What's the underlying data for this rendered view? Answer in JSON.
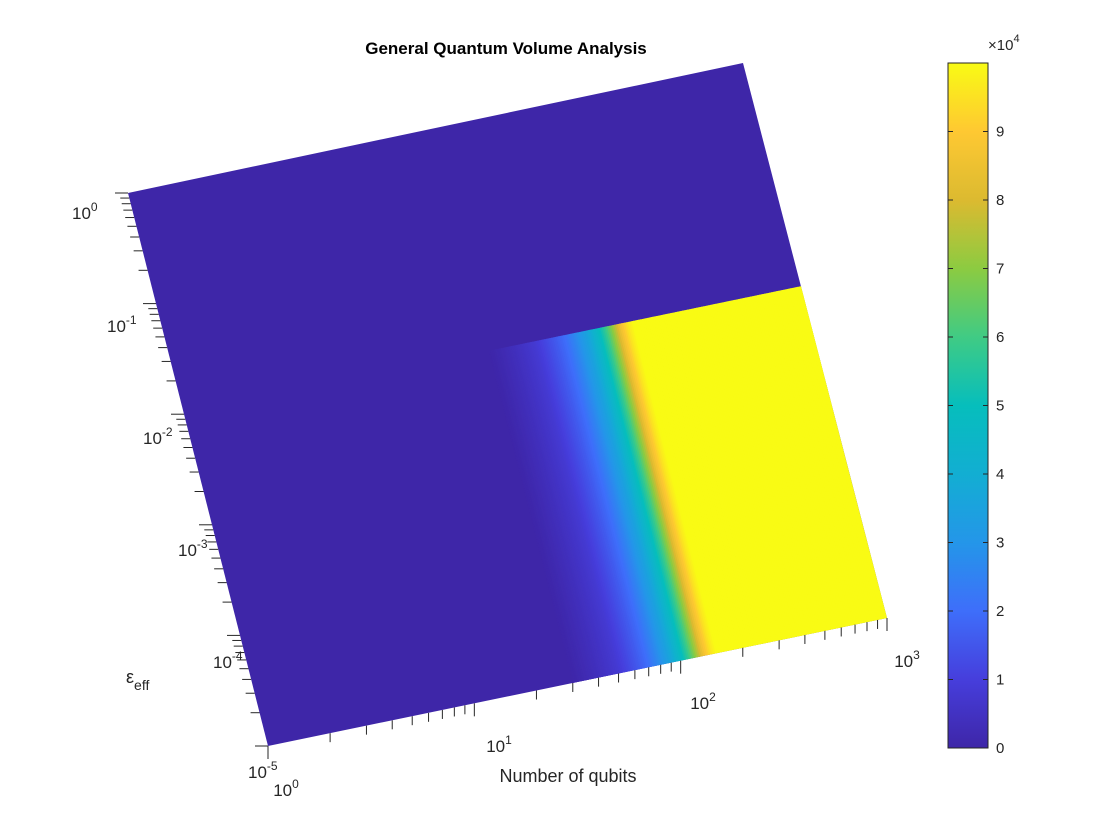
{
  "chart_data": {
    "type": "heatmap",
    "title": "General Quantum Volume Analysis",
    "xlabel": "Number of qubits",
    "ylabel": "ε_eff",
    "ylabel_base": "ε",
    "ylabel_sub": "eff",
    "x_scale": "log",
    "y_scale": "log",
    "xlim": [
      1,
      1000
    ],
    "ylim": [
      1e-05,
      1
    ],
    "x_ticks": [
      {
        "base": "10",
        "exp": "0",
        "value": 1
      },
      {
        "base": "10",
        "exp": "1",
        "value": 10
      },
      {
        "base": "10",
        "exp": "2",
        "value": 100
      },
      {
        "base": "10",
        "exp": "3",
        "value": 1000
      }
    ],
    "y_ticks": [
      {
        "base": "10",
        "exp": "-5",
        "value": 1e-05
      },
      {
        "base": "10",
        "exp": "-4",
        "value": 0.0001
      },
      {
        "base": "10",
        "exp": "-3",
        "value": 0.001
      },
      {
        "base": "10",
        "exp": "-2",
        "value": 0.01
      },
      {
        "base": "10",
        "exp": "-1",
        "value": 0.1
      },
      {
        "base": "10",
        "exp": "0",
        "value": 1
      }
    ],
    "colorbar": {
      "clim": [
        0,
        100000
      ],
      "multiplier_base": "×10",
      "multiplier_exp": "4",
      "ticks": [
        "0",
        "1",
        "2",
        "3",
        "4",
        "5",
        "6",
        "7",
        "8",
        "9"
      ],
      "colormap": "parula"
    },
    "surface": {
      "description_region": "nonzero only for epsilon < 0.01 and qubits > ~30",
      "region_eps_max": 0.01,
      "region_q_min": 30,
      "value_profile": [
        {
          "q": 1,
          "v": 0
        },
        {
          "q": 30,
          "v": 0
        },
        {
          "q": 40,
          "v": 4000
        },
        {
          "q": 50,
          "v": 8000
        },
        {
          "q": 60,
          "v": 14000
        },
        {
          "q": 70,
          "v": 20000
        },
        {
          "q": 80,
          "v": 28000
        },
        {
          "q": 90,
          "v": 36000
        },
        {
          "q": 100,
          "v": 46000
        },
        {
          "q": 110,
          "v": 58000
        },
        {
          "q": 120,
          "v": 72000
        },
        {
          "q": 130,
          "v": 86000
        },
        {
          "q": 140,
          "v": 95000
        },
        {
          "q": 150,
          "v": 100000
        },
        {
          "q": 1000,
          "v": 100000
        }
      ]
    }
  }
}
